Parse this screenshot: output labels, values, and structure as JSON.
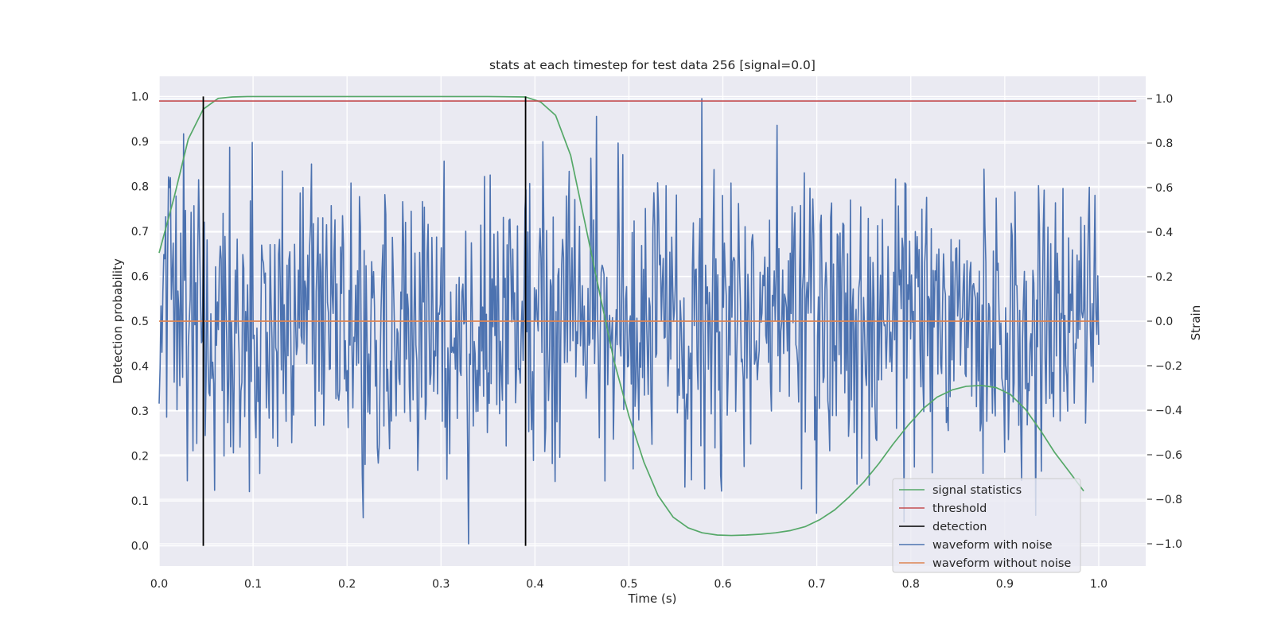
{
  "chart_data": {
    "type": "line",
    "title": "stats at each timestep for test data 256 [signal=0.0]",
    "xlabel": "Time (s)",
    "ylabel_left": "Detection probability",
    "ylabel_right": "Strain",
    "xlim": [
      0.0,
      1.05
    ],
    "ylim_left": [
      -0.045,
      1.045
    ],
    "ylim_right": [
      -1.1,
      1.1
    ],
    "x_ticks": [
      0.0,
      0.1,
      0.2,
      0.3,
      0.4,
      0.5,
      0.6,
      0.7,
      0.8,
      0.9,
      1.0
    ],
    "x_tick_labels": [
      "0.0",
      "0.1",
      "0.2",
      "0.3",
      "0.4",
      "0.5",
      "0.6",
      "0.7",
      "0.8",
      "0.9",
      "1.0"
    ],
    "y_left_ticks": [
      0.0,
      0.1,
      0.2,
      0.3,
      0.4,
      0.5,
      0.6,
      0.7,
      0.8,
      0.9,
      1.0
    ],
    "y_left_tick_labels": [
      "0.0",
      "0.1",
      "0.2",
      "0.3",
      "0.4",
      "0.5",
      "0.6",
      "0.7",
      "0.8",
      "0.9",
      "1.0"
    ],
    "y_right_ticks": [
      -1.0,
      -0.8,
      -0.6,
      -0.4,
      -0.2,
      0.0,
      0.2,
      0.4,
      0.6,
      0.8,
      1.0
    ],
    "y_right_tick_labels": [
      "−1.0",
      "−0.8",
      "−0.6",
      "−0.4",
      "−0.2",
      "0.0",
      "0.2",
      "0.4",
      "0.6",
      "0.8",
      "1.0"
    ],
    "grid": true,
    "legend_position": "lower-right",
    "colors": {
      "signal_statistics": "#55a868",
      "threshold": "#c44e52",
      "detection": "#000000",
      "waveform_with_noise": "#4c72b0",
      "waveform_without_noise": "#dd8452",
      "axes_background": "#eaeaf2",
      "grid": "#ffffff"
    },
    "series": [
      {
        "name": "signal statistics",
        "axis": "left",
        "x": [
          0.0,
          0.016,
          0.031,
          0.047,
          0.063,
          0.078,
          0.094,
          0.109,
          0.125,
          0.2,
          0.3,
          0.35,
          0.39,
          0.406,
          0.422,
          0.438,
          0.453,
          0.469,
          0.484,
          0.5,
          0.516,
          0.531,
          0.547,
          0.563,
          0.578,
          0.594,
          0.609,
          0.625,
          0.641,
          0.656,
          0.672,
          0.688,
          0.703,
          0.719,
          0.734,
          0.75,
          0.766,
          0.781,
          0.797,
          0.813,
          0.828,
          0.844,
          0.859,
          0.875,
          0.891,
          0.906,
          0.922,
          0.938,
          0.953,
          0.969,
          0.984
        ],
        "y": [
          0.652,
          0.776,
          0.905,
          0.972,
          0.996,
          0.999,
          1.0,
          1.0,
          1.0,
          1.0,
          1.0,
          1.0,
          0.999,
          0.988,
          0.958,
          0.869,
          0.721,
          0.561,
          0.413,
          0.289,
          0.186,
          0.112,
          0.064,
          0.04,
          0.029,
          0.024,
          0.023,
          0.024,
          0.026,
          0.029,
          0.034,
          0.043,
          0.058,
          0.08,
          0.108,
          0.142,
          0.183,
          0.226,
          0.268,
          0.305,
          0.331,
          0.347,
          0.355,
          0.357,
          0.352,
          0.337,
          0.304,
          0.257,
          0.208,
          0.164,
          0.122
        ]
      },
      {
        "name": "threshold",
        "axis": "left",
        "x": [
          0.0,
          1.04
        ],
        "y": [
          0.99,
          0.99
        ]
      },
      {
        "name": "detection",
        "axis": "left",
        "x": [
          0.047,
          0.39
        ],
        "y_range": [
          0.0,
          1.0
        ]
      },
      {
        "name": "waveform with noise",
        "axis": "right",
        "x_range": [
          0.0,
          1.0
        ],
        "n_points": 1000,
        "y_range": [
          -1.0,
          1.0
        ],
        "approximate": true,
        "notable_points": [
          {
            "x": 0.329,
            "y": -1.0
          },
          {
            "x": 0.578,
            "y": 1.0
          },
          {
            "x": 0.658,
            "y": 0.88
          },
          {
            "x": 0.011,
            "y": 0.6
          },
          {
            "x": 0.421,
            "y": -0.72
          }
        ]
      },
      {
        "name": "waveform without noise",
        "axis": "right",
        "x": [
          0.0,
          1.0
        ],
        "y": [
          0.0,
          0.0
        ]
      }
    ]
  }
}
